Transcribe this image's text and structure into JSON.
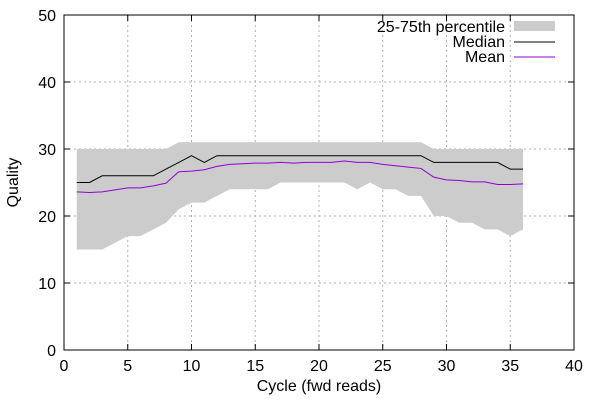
{
  "chart_data": {
    "type": "line",
    "title": "",
    "xlabel": "Cycle (fwd reads)",
    "ylabel": "Quality",
    "xlim": [
      0,
      40
    ],
    "ylim": [
      0,
      50
    ],
    "x_ticks": [
      0,
      5,
      10,
      15,
      20,
      25,
      30,
      35,
      40
    ],
    "y_ticks": [
      0,
      10,
      20,
      30,
      40,
      50
    ],
    "grid": true,
    "legend_position": "top-right",
    "x": [
      1,
      2,
      3,
      4,
      5,
      6,
      7,
      8,
      9,
      10,
      11,
      12,
      13,
      14,
      15,
      16,
      17,
      18,
      19,
      20,
      21,
      22,
      23,
      24,
      25,
      26,
      27,
      28,
      29,
      30,
      31,
      32,
      33,
      34,
      35,
      36
    ],
    "series": [
      {
        "name": "25-75th percentile",
        "type": "band",
        "color": "#cccccc",
        "lower": [
          15,
          15,
          15,
          16,
          17,
          17,
          18,
          19,
          21,
          22,
          22,
          23,
          24,
          24,
          24,
          24,
          25,
          25,
          25,
          25,
          25,
          25,
          24,
          25,
          24,
          24,
          23,
          23,
          20,
          20,
          19,
          19,
          18,
          18,
          17,
          18
        ],
        "upper": [
          30,
          30,
          30,
          30,
          30,
          30,
          30,
          30,
          31,
          31,
          31,
          31,
          31,
          31,
          31,
          31,
          31,
          31,
          31,
          31,
          31,
          31,
          31,
          31,
          31,
          31,
          31,
          31,
          30,
          30,
          30,
          30,
          30,
          30,
          30,
          30
        ]
      },
      {
        "name": "Median",
        "type": "line",
        "color": "#000000",
        "values": [
          25,
          25,
          26,
          26,
          26,
          26,
          26,
          27,
          28,
          29,
          28,
          29,
          29,
          29,
          29,
          29,
          29,
          29,
          29,
          29,
          29,
          29,
          29,
          29,
          29,
          29,
          29,
          29,
          28,
          28,
          28,
          28,
          28,
          28,
          27,
          27
        ]
      },
      {
        "name": "Mean",
        "type": "line",
        "color": "#9400d3",
        "values": [
          23.6,
          23.5,
          23.6,
          23.9,
          24.2,
          24.2,
          24.5,
          24.9,
          26.6,
          26.7,
          26.9,
          27.4,
          27.7,
          27.8,
          27.9,
          27.9,
          28.0,
          27.9,
          28.0,
          28.0,
          28.0,
          28.2,
          28.0,
          28.0,
          27.7,
          27.5,
          27.3,
          27.1,
          25.8,
          25.4,
          25.3,
          25.1,
          25.1,
          24.7,
          24.7,
          24.8
        ]
      }
    ]
  }
}
